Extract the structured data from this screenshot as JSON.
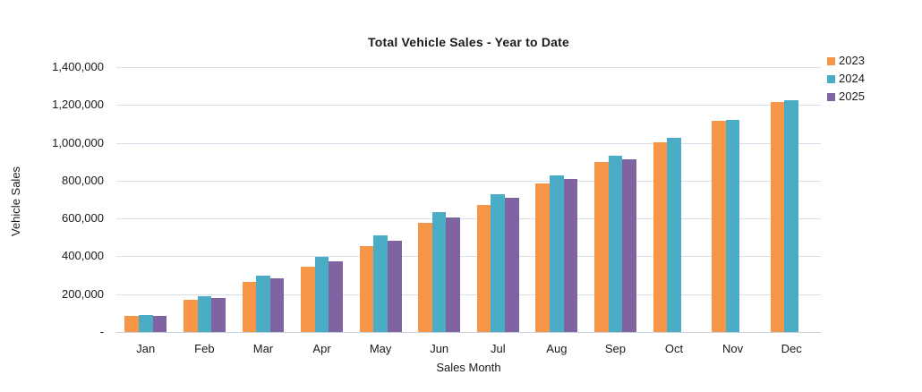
{
  "chart_data": {
    "type": "bar",
    "title": "Total Vehicle Sales - Year to Date",
    "xlabel": "Sales Month",
    "ylabel": "Vehicle Sales",
    "categories": [
      "Jan",
      "Feb",
      "Mar",
      "Apr",
      "May",
      "Jun",
      "Jul",
      "Aug",
      "Sep",
      "Oct",
      "Nov",
      "Dec"
    ],
    "series": [
      {
        "name": "2023",
        "color": "#F79646",
        "values": [
          85000,
          170000,
          266000,
          344000,
          455000,
          578000,
          672000,
          786000,
          900000,
          1005000,
          1115000,
          1217000
        ]
      },
      {
        "name": "2024",
        "color": "#4BACC6",
        "values": [
          91000,
          190000,
          297000,
          396000,
          510000,
          632000,
          730000,
          829000,
          930000,
          1025000,
          1122000,
          1223000
        ]
      },
      {
        "name": "2025",
        "color": "#8064A2",
        "values": [
          86000,
          181000,
          282000,
          376000,
          483000,
          607000,
          709000,
          811000,
          915000,
          null,
          null,
          null
        ]
      }
    ],
    "ylim": [
      0,
      1400000
    ],
    "yticks": [
      {
        "value": 1400000,
        "label": "1,400,000"
      },
      {
        "value": 1200000,
        "label": "1,200,000"
      },
      {
        "value": 1000000,
        "label": "1,000,000"
      },
      {
        "value": 800000,
        "label": "800,000"
      },
      {
        "value": 600000,
        "label": "600,000"
      },
      {
        "value": 400000,
        "label": "400,000"
      },
      {
        "value": 200000,
        "label": "200,000"
      },
      {
        "value": 0,
        "label": "-"
      }
    ],
    "grid": "horizontal",
    "gridline_color": "#d7dfea",
    "legend_position": "top-right",
    "background_color": "#ffffff"
  }
}
